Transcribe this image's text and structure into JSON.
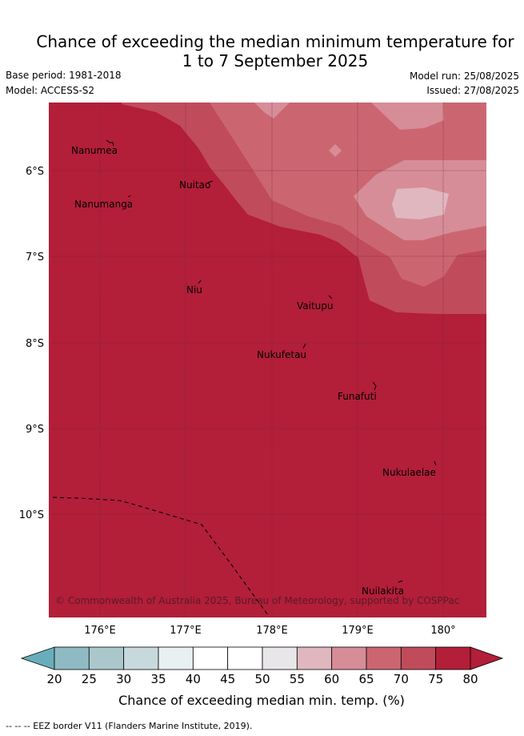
{
  "header": {
    "title_line1": "Chance of exceeding the median minimum temperature for",
    "title_line2": "1 to 7 September 2025",
    "base_period": "Base period: 1981-2018",
    "model": "Model: ACCESS-S2",
    "model_run": "Model run: 25/08/2025",
    "issued": "Issued: 27/08/2025"
  },
  "map": {
    "lat_labels": [
      "6°S",
      "7°S",
      "8°S",
      "9°S",
      "10°S"
    ],
    "lon_labels": [
      "176°E",
      "177°E",
      "178°E",
      "179°E",
      "180°"
    ],
    "islands": [
      {
        "name": "Nanumea"
      },
      {
        "name": "Nuitao"
      },
      {
        "name": "Nanumanga"
      },
      {
        "name": "Niu"
      },
      {
        "name": "Vaitupu"
      },
      {
        "name": "Nukufetau"
      },
      {
        "name": "Funafuti"
      },
      {
        "name": "Nukulaelae"
      },
      {
        "name": "Nuilakita"
      }
    ],
    "copyright": "© Commonwealth of Australia 2025, Bureau of Meteorology, supported by COSPPac"
  },
  "colorbar": {
    "ticks": [
      "20",
      "25",
      "30",
      "35",
      "40",
      "45",
      "50",
      "55",
      "60",
      "65",
      "70",
      "75",
      "80"
    ],
    "colors": [
      "#68aeba",
      "#8fbac4",
      "#aac8cc",
      "#c8d9dd",
      "#e9f0f2",
      "#ffffff",
      "#ffffff",
      "#e8e6e8",
      "#e0b7bf",
      "#d68d98",
      "#cb6671",
      "#c04b5b",
      "#b31e39"
    ],
    "label": "Chance of exceeding median min. temp. (%)"
  },
  "footer": {
    "legend_text": "--  --  -- EEZ border V11 (Flanders Marine Institute, 2019)."
  }
}
